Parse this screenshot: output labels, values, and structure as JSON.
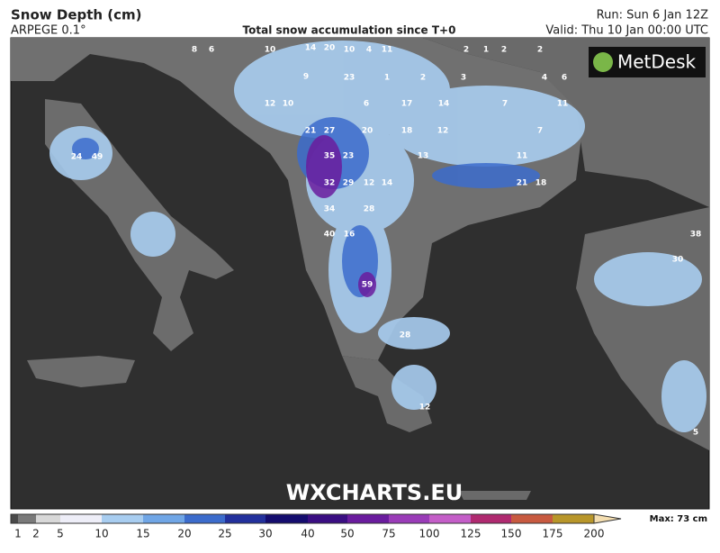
{
  "header": {
    "title": "Snow Depth (cm)",
    "model": "ARPEGE 0.1°",
    "subtitle": "Total snow accumulation since T+0",
    "run": "Run: Sun 6 Jan 12Z",
    "valid": "Valid: Thu 10 Jan 00:00 UTC"
  },
  "logo": "MetDesk",
  "watermark": "WXCHARTS.EU",
  "map_labels": [
    "8",
    "6",
    "10",
    "14",
    "20",
    "10",
    "4",
    "11",
    "2",
    "1",
    "2",
    "2",
    "9",
    "23",
    "1",
    "2",
    "3",
    "4",
    "6",
    "12",
    "10",
    "6",
    "17",
    "14",
    "7",
    "11",
    "21",
    "27",
    "20",
    "18",
    "12",
    "7",
    "24",
    "49",
    "35",
    "23",
    "13",
    "11",
    "32",
    "29",
    "12",
    "14",
    "21",
    "18",
    "34",
    "28",
    "40",
    "16",
    "38",
    "30",
    "59",
    "28",
    "12",
    "5"
  ],
  "legend": {
    "ticks": [
      1,
      2,
      5,
      10,
      15,
      20,
      25,
      30,
      40,
      50,
      75,
      100,
      125,
      150,
      175,
      200
    ],
    "colors": [
      "#7a7a7a",
      "#d8d8d8",
      "#eeeef8",
      "#a8cdf0",
      "#70a6e6",
      "#3c6ccc",
      "#22309c",
      "#140c6e",
      "#3a0e82",
      "#6a1c9e",
      "#9a3cb8",
      "#c45ec8",
      "#b02a70",
      "#c85a40",
      "#b8962a",
      "#f4deb0"
    ],
    "max_label": "Max: 73 cm"
  }
}
